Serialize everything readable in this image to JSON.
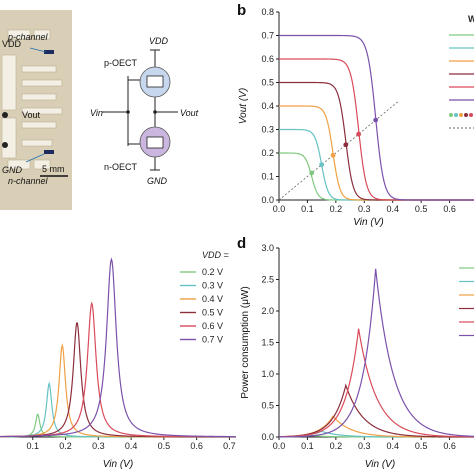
{
  "panels": {
    "a": {
      "letter": "",
      "photo_labels": {
        "vdd": "VDD",
        "p_channel": "p-channel",
        "vout": "Vout",
        "gnd": "GND",
        "n_channel": "n-channel",
        "scale": "5 mm"
      },
      "schematic_labels": {
        "vdd": "VDD",
        "p_oect": "p-OECT",
        "n_oect": "n-OECT",
        "vin": "Vin",
        "vout": "Vout",
        "gnd": "GND"
      }
    },
    "b": {
      "letter": "b"
    },
    "c": {
      "letter": ""
    },
    "d": {
      "letter": "d"
    }
  },
  "series_colors": [
    "#7fc97f",
    "#66c2c4",
    "#f0a044",
    "#8c2f3c",
    "#d94b5a",
    "#7b52ab"
  ],
  "chart_data": [
    {
      "id": "b",
      "type": "line",
      "xlabel": "Vin (V)",
      "ylabel": "Vout (V)",
      "xlim": [
        0,
        0.7
      ],
      "ylim": [
        0,
        0.8
      ],
      "xticks": [
        "0.0",
        "0.1",
        "0.2",
        "0.3",
        "0.4",
        "0.5",
        "0.6"
      ],
      "yticks": [
        "0.0",
        "0.1",
        "0.2",
        "0.3",
        "0.4",
        "0.5",
        "0.6",
        "0.7",
        "0.8"
      ],
      "legend_visible": "W",
      "legend_position": "top-right",
      "vm_line": true,
      "series": [
        {
          "vdd": 0.2,
          "switch_v": 0.115
        },
        {
          "vdd": 0.3,
          "switch_v": 0.15
        },
        {
          "vdd": 0.4,
          "switch_v": 0.19
        },
        {
          "vdd": 0.5,
          "switch_v": 0.235
        },
        {
          "vdd": 0.6,
          "switch_v": 0.28
        },
        {
          "vdd": 0.7,
          "switch_v": 0.34
        }
      ]
    },
    {
      "id": "c",
      "type": "line",
      "xlabel": "Vin (V)",
      "ylabel": "",
      "xlim": [
        0,
        0.7
      ],
      "xticks": [
        "0.1",
        "0.2",
        "0.3",
        "0.4",
        "0.5",
        "0.6",
        "0.7"
      ],
      "legend_title": "VDD =",
      "legend_position": "top-right",
      "series": [
        {
          "name": "0.2 V",
          "peak_x": 0.115,
          "peak_height": 0.12
        },
        {
          "name": "0.3 V",
          "peak_x": 0.15,
          "peak_height": 0.28
        },
        {
          "name": "0.4 V",
          "peak_x": 0.19,
          "peak_height": 0.48
        },
        {
          "name": "0.5 V",
          "peak_x": 0.235,
          "peak_height": 0.6
        },
        {
          "name": "0.6 V",
          "peak_x": 0.28,
          "peak_height": 0.7
        },
        {
          "name": "0.7 V",
          "peak_x": 0.34,
          "peak_height": 0.93
        }
      ]
    },
    {
      "id": "d",
      "type": "line",
      "xlabel": "Vin (V)",
      "ylabel": "Power consumption (μW)",
      "xlim": [
        0,
        0.7
      ],
      "ylim": [
        0,
        3.0
      ],
      "xticks": [
        "0.0",
        "0.1",
        "0.2",
        "0.3",
        "0.4",
        "0.5",
        "0.6"
      ],
      "yticks": [
        "0.0",
        "0.5",
        "1.0",
        "1.5",
        "2.0",
        "2.5",
        "3.0"
      ],
      "series": [
        {
          "vdd": 0.2,
          "peak_x": 0.115,
          "peak_y": 0.02
        },
        {
          "vdd": 0.3,
          "peak_x": 0.15,
          "peak_y": 0.09
        },
        {
          "vdd": 0.4,
          "peak_x": 0.19,
          "peak_y": 0.33
        },
        {
          "vdd": 0.5,
          "peak_x": 0.235,
          "peak_y": 0.82
        },
        {
          "vdd": 0.6,
          "peak_x": 0.28,
          "peak_y": 1.72
        },
        {
          "vdd": 0.7,
          "peak_x": 0.34,
          "peak_y": 2.67
        }
      ]
    }
  ]
}
